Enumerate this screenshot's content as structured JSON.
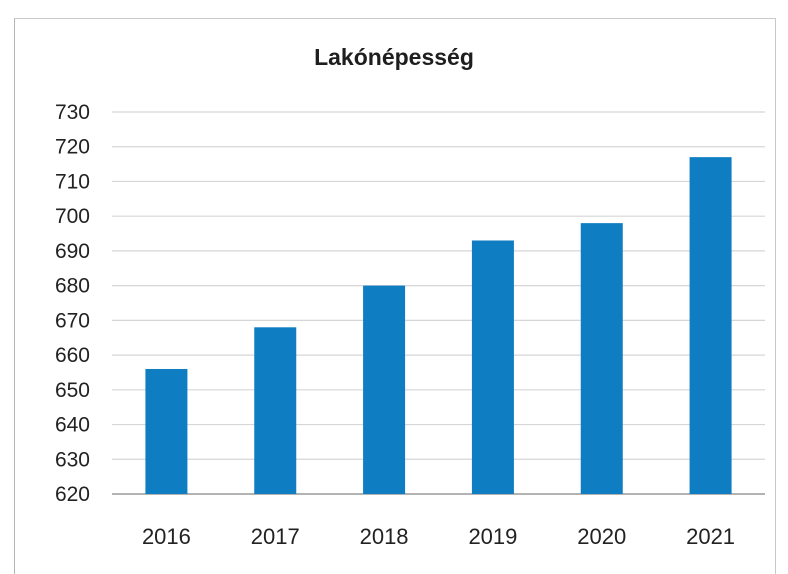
{
  "chart_data": {
    "type": "bar",
    "title": "Lakónépesség",
    "categories": [
      "2016",
      "2017",
      "2018",
      "2019",
      "2020",
      "2021"
    ],
    "values": [
      656,
      668,
      680,
      693,
      698,
      717
    ],
    "ylim": [
      620,
      730
    ],
    "yticks": [
      620,
      630,
      640,
      650,
      660,
      670,
      680,
      690,
      700,
      710,
      720,
      730
    ],
    "grid": true,
    "legend": "none",
    "bar_color": "#0f7dc2"
  }
}
